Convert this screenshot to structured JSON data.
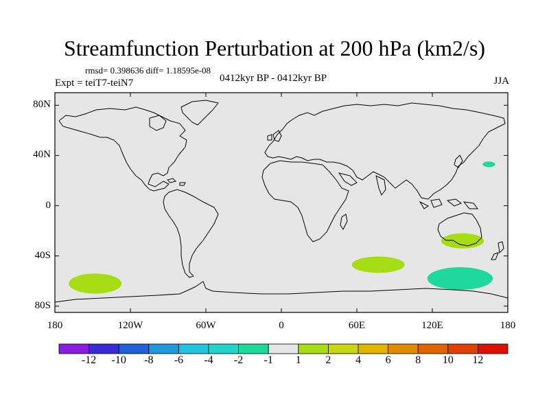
{
  "title": "Streamfunction Perturbation at 200 hPa (km2/s)",
  "stats_line": "rmsd= 0.398636 diff= 1.18595e-08",
  "experiment_label": "Expt = teiT7-teiN7",
  "period_label": "0412kyr BP - 0412kyr BP",
  "season_label": "JJA",
  "lat_ticks": [
    {
      "value": 80,
      "label": "80N"
    },
    {
      "value": 40,
      "label": "40N"
    },
    {
      "value": 0,
      "label": "0"
    },
    {
      "value": -40,
      "label": "40S"
    },
    {
      "value": -80,
      "label": "80S"
    }
  ],
  "lon_ticks": [
    {
      "value": -180,
      "label": "180"
    },
    {
      "value": -120,
      "label": "120W"
    },
    {
      "value": -60,
      "label": "60W"
    },
    {
      "value": 0,
      "label": "0"
    },
    {
      "value": 60,
      "label": "60E"
    },
    {
      "value": 120,
      "label": "120E"
    },
    {
      "value": 180,
      "label": "180"
    }
  ],
  "colorbar": {
    "colors": [
      "#8a1ee0",
      "#3b2ad6",
      "#1f5fd8",
      "#1f98dc",
      "#22c4e0",
      "#20d6c8",
      "#1ed89c",
      "#e6e6e6",
      "#a6dc14",
      "#c8d614",
      "#e0b400",
      "#e08c00",
      "#e06400",
      "#e04000",
      "#e01000"
    ],
    "labels": [
      "-12",
      "-10",
      "-8",
      "-6",
      "-4",
      "-2",
      "-1",
      "1",
      "2",
      "4",
      "6",
      "8",
      "10",
      "12"
    ]
  },
  "anomalies": [
    {
      "name": "anomaly-south-pacific",
      "lon": -148,
      "lat": -62,
      "rlon": 21,
      "rlat": 8,
      "level": "1 to 2",
      "color": "#a6dc14"
    },
    {
      "name": "anomaly-south-indian-ocean",
      "lon": 77,
      "lat": -47,
      "rlon": 21,
      "rlat": 6.5,
      "level": "1 to 2",
      "color": "#a6dc14"
    },
    {
      "name": "anomaly-australia",
      "lon": 144,
      "lat": -28,
      "rlon": 17,
      "rlat": 6,
      "level": "1 to 2",
      "color": "#a6dc14"
    },
    {
      "name": "anomaly-south-of-australia",
      "lon": 142,
      "lat": -58,
      "rlon": 26,
      "rlat": 9,
      "level": "-2 to -1",
      "color": "#1ed89c"
    },
    {
      "name": "anomaly-north-pacific",
      "lon": 165,
      "lat": 33,
      "rlon": 5,
      "rlat": 2.2,
      "level": "-2 to -1",
      "color": "#1ed89c"
    }
  ],
  "map_background": "#e6e6e6"
}
